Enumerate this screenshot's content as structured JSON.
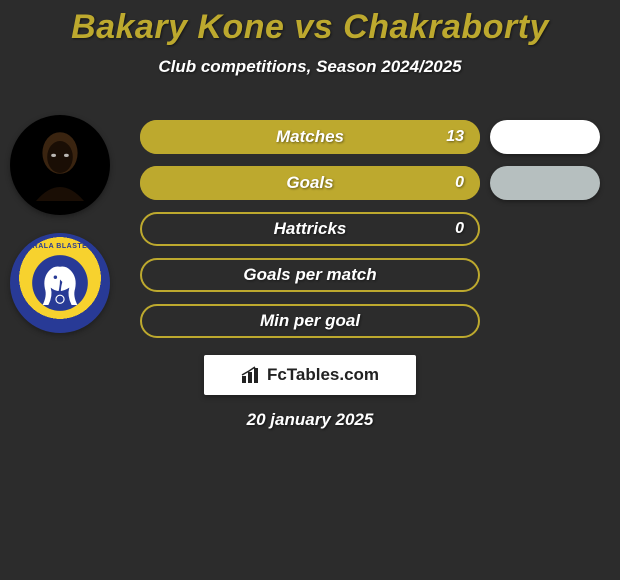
{
  "background_color": "#2c2c2c",
  "title_color": "#bda92e",
  "title_text": "Bakary Kone vs Chakraborty",
  "subtitle_text": "Club competitions, Season 2024/2025",
  "bars": {
    "outline_color": "#bda92e",
    "fill_color": "#bda92e",
    "border_width": 2,
    "items": [
      {
        "label": "Matches",
        "value": "13",
        "fill_ratio": 1.0
      },
      {
        "label": "Goals",
        "value": "0",
        "fill_ratio": 1.0
      },
      {
        "label": "Hattricks",
        "value": "0",
        "fill_ratio": 0.0
      },
      {
        "label": "Goals per match",
        "value": "",
        "fill_ratio": 0.0
      },
      {
        "label": "Min per goal",
        "value": "",
        "fill_ratio": 0.0
      }
    ]
  },
  "right_pills": [
    {
      "color": "#ffffff",
      "visible": true
    },
    {
      "color": "#b6bfbf",
      "visible": true
    },
    {
      "color": "#ffffff",
      "visible": false
    },
    {
      "color": "#ffffff",
      "visible": false
    },
    {
      "color": "#ffffff",
      "visible": false
    }
  ],
  "avatars": {
    "player_name": "Bakary Kone",
    "club_name": "KERALA BLASTERS",
    "club_primary": "#f7d22e",
    "club_secondary": "#283a96"
  },
  "logo": {
    "text": "FcTables.com",
    "chart_color": "#222222"
  },
  "date_text": "20 january 2025"
}
